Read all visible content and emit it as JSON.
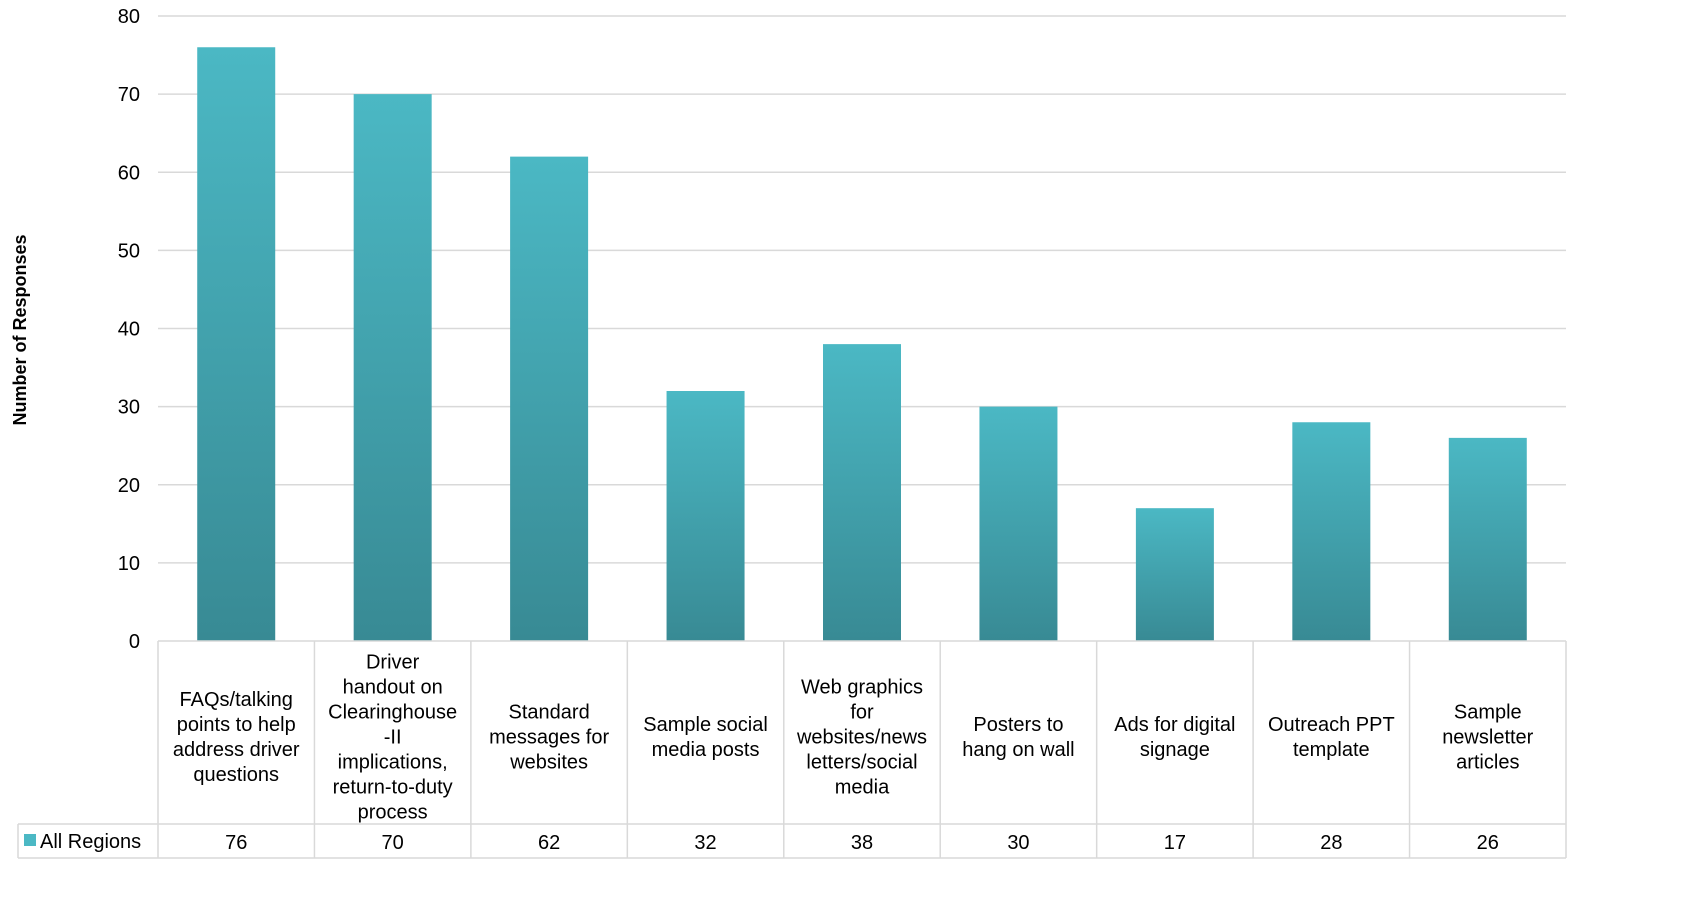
{
  "chart_data": {
    "type": "bar",
    "title": "",
    "xlabel": "",
    "ylabel": "Number of Responses",
    "ylim": [
      0,
      80
    ],
    "yticks": [
      0,
      10,
      20,
      30,
      40,
      50,
      60,
      70,
      80
    ],
    "grid": true,
    "legend": "data-table-left",
    "categories": [
      "FAQs/talking points to help address driver questions",
      "Driver handout on Clearinghouse -II implications, return-to-duty process",
      "Standard messages for websites",
      "Sample social media posts",
      "Web graphics for websites/news letters/social media",
      "Posters to hang on wall",
      "Ads for digital signage",
      "Outreach PPT template",
      "Sample newsletter articles"
    ],
    "category_lines": [
      [
        "FAQs/talking",
        "points to help",
        "address driver",
        "questions"
      ],
      [
        "Driver",
        "handout on",
        "Clearinghouse",
        "-II",
        "implications,",
        "return-to-duty",
        "process"
      ],
      [
        "Standard",
        "messages for",
        "websites"
      ],
      [
        "Sample social",
        "media posts"
      ],
      [
        "Web graphics",
        "for",
        "websites/news",
        "letters/social",
        "media"
      ],
      [
        "Posters to",
        "hang on wall"
      ],
      [
        "Ads for digital",
        "signage"
      ],
      [
        "Outreach PPT",
        "template"
      ],
      [
        "Sample",
        "newsletter",
        "articles"
      ]
    ],
    "series": [
      {
        "name": "All Regions",
        "values": [
          76,
          70,
          62,
          32,
          38,
          30,
          17,
          28,
          26
        ],
        "color_top": "#4bb8c4",
        "color_bottom": "#388a94"
      }
    ],
    "gridline_color": "#d9d9d9"
  }
}
